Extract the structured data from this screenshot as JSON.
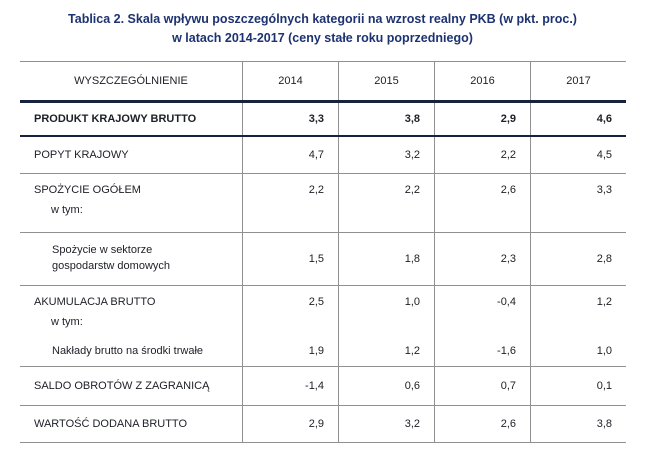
{
  "title": {
    "line1": "Tablica 2. Skala wpływu poszczególnych kategorii na wzrost realny PKB (w pkt. proc.)",
    "line2": "w latach 2014-2017 (ceny stałe roku poprzedniego)"
  },
  "colors": {
    "title_text": "#1d3271",
    "dark_rule": "#17223f",
    "light_rule": "#909090"
  },
  "table": {
    "header": {
      "label": "WYSZCZEGÓLNIENIE",
      "years": [
        "2014",
        "2015",
        "2016",
        "2017"
      ]
    },
    "rows": [
      {
        "label": "PRODUKT KRAJOWY BRUTTO",
        "values": [
          "3,3",
          "3,8",
          "2,9",
          "4,6"
        ]
      },
      {
        "label": "POPYT KRAJOWY",
        "values": [
          "4,7",
          "3,2",
          "2,2",
          "4,5"
        ]
      },
      {
        "label": "SPOŻYCIE OGÓŁEM",
        "sublabel": "w tym:",
        "values": [
          "2,2",
          "2,2",
          "2,6",
          "3,3"
        ]
      },
      {
        "label": "Spożycie w sektorze gospodarstw domowych",
        "values": [
          "1,5",
          "1,8",
          "2,3",
          "2,8"
        ]
      },
      {
        "label": "AKUMULACJA BRUTTO",
        "sublabel": "w tym:",
        "values": [
          "2,5",
          "1,0",
          "-0,4",
          "1,2"
        ]
      },
      {
        "label": "Nakłady brutto na środki trwałe",
        "values": [
          "1,9",
          "1,2",
          "-1,6",
          "1,0"
        ]
      },
      {
        "label": "SALDO OBROTÓW Z ZAGRANICĄ",
        "values": [
          "-1,4",
          "0,6",
          "0,7",
          "0,1"
        ]
      },
      {
        "label": "WARTOŚĆ DODANA BRUTTO",
        "values": [
          "2,9",
          "3,2",
          "2,6",
          "3,8"
        ]
      }
    ]
  }
}
